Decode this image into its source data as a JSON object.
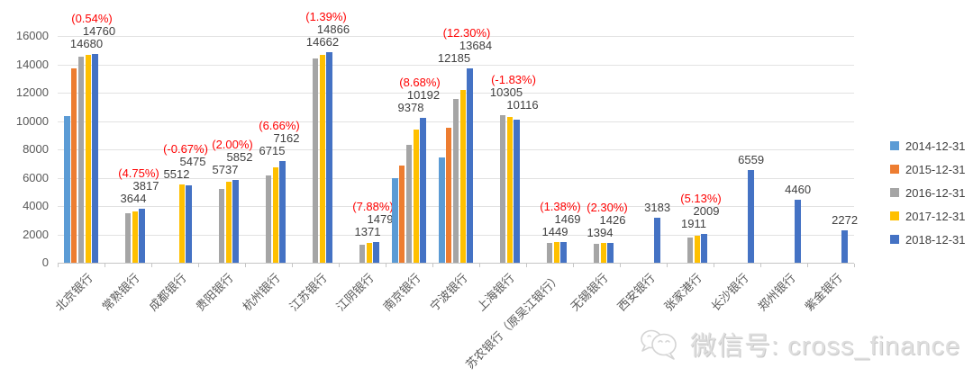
{
  "chart_data": {
    "type": "bar",
    "title": "",
    "xlabel": "",
    "ylabel": "",
    "ylim": [
      0,
      16000
    ],
    "yticks": [
      0,
      2000,
      4000,
      6000,
      8000,
      10000,
      12000,
      14000,
      16000
    ],
    "grid": "horizontal",
    "legend_position": "right",
    "series": [
      {
        "name": "2014-12-31",
        "color": "#5B9BD5"
      },
      {
        "name": "2015-12-31",
        "color": "#ED7D31"
      },
      {
        "name": "2016-12-31",
        "color": "#A5A5A5"
      },
      {
        "name": "2017-12-31",
        "color": "#FFC000"
      },
      {
        "name": "2018-12-31",
        "color": "#4472C4"
      }
    ],
    "categories": [
      "北京银行",
      "常熟银行",
      "成都银行",
      "贵阳银行",
      "杭州银行",
      "江苏银行",
      "江阴银行",
      "南京银行",
      "宁波银行",
      "上海银行",
      "苏农银行（原吴江银行）",
      "无锡银行",
      "西安银行",
      "张家港行",
      "长沙银行",
      "郑州银行",
      "紫金银行"
    ],
    "values": [
      [
        10350,
        13720,
        14520,
        14680,
        14760
      ],
      [
        null,
        null,
        3500,
        3644,
        3817
      ],
      [
        null,
        null,
        null,
        5512,
        5475
      ],
      [
        null,
        null,
        5200,
        5737,
        5852
      ],
      [
        null,
        null,
        6180,
        6715,
        7162
      ],
      [
        null,
        null,
        14420,
        14662,
        14866
      ],
      [
        null,
        null,
        1250,
        1371,
        1479
      ],
      [
        5950,
        6850,
        8300,
        9378,
        10192
      ],
      [
        7450,
        9500,
        11560,
        12185,
        13684
      ],
      [
        null,
        null,
        10430,
        10305,
        10116
      ],
      [
        null,
        null,
        1420,
        1449,
        1469
      ],
      [
        null,
        null,
        1350,
        1394,
        1426
      ],
      [
        null,
        null,
        null,
        null,
        3183
      ],
      [
        null,
        null,
        1750,
        1911,
        2009
      ],
      [
        null,
        null,
        null,
        null,
        6559
      ],
      [
        null,
        null,
        null,
        null,
        4460
      ],
      [
        null,
        null,
        null,
        null,
        2272
      ]
    ],
    "annotations": [
      {
        "pct": "(0.54%)",
        "lines": [
          {
            "text": "14760",
            "dx": 8
          },
          {
            "text": "14680",
            "dx": -6
          }
        ]
      },
      {
        "pct": "(4.75%)",
        "lines": [
          {
            "text": "3817",
            "dx": 8
          },
          {
            "text": "3644",
            "dx": -6
          }
        ]
      },
      {
        "pct": "(-0.67%)",
        "lines": [
          {
            "text": "5475",
            "dx": 8
          },
          {
            "text": "5512",
            "dx": -10
          }
        ]
      },
      {
        "pct": "(2.00%)",
        "lines": [
          {
            "text": "5852",
            "dx": 8
          },
          {
            "text": "5737",
            "dx": -8
          }
        ]
      },
      {
        "pct": "(6.66%)",
        "lines": [
          {
            "text": "7162",
            "dx": 8
          },
          {
            "text": "6715",
            "dx": -8
          }
        ]
      },
      {
        "pct": "(1.39%)",
        "lines": [
          {
            "text": "14866",
            "dx": 8
          },
          {
            "text": "14662",
            "dx": -4
          }
        ]
      },
      {
        "pct": "(7.88%)",
        "lines": [
          {
            "text": "1479",
            "dx": 8
          },
          {
            "text": "1371",
            "dx": -6
          }
        ]
      },
      {
        "pct": "(8.68%)",
        "lines": [
          {
            "text": "10192",
            "dx": 4
          },
          {
            "text": "9378",
            "dx": -10
          }
        ]
      },
      {
        "pct": "(12.30%)",
        "lines": [
          {
            "text": "13684",
            "dx": 10
          },
          {
            "text": "12185",
            "dx": -14
          }
        ]
      },
      {
        "pct": "(-1.83%)",
        "lines": [
          {
            "text": "10305",
            "dx": -8
          },
          {
            "text": "10116",
            "dx": 10
          }
        ]
      },
      {
        "pct": "(1.38%)",
        "lines": [
          {
            "text": "1469",
            "dx": 8
          },
          {
            "text": "1449",
            "dx": -6
          }
        ]
      },
      {
        "pct": "(2.30%)",
        "lines": [
          {
            "text": "1426",
            "dx": 6
          },
          {
            "text": "1394",
            "dx": -8
          }
        ]
      },
      {
        "pct": null,
        "lines": [
          {
            "text": "3183",
            "dx": 0
          }
        ]
      },
      {
        "pct": "(5.13%)",
        "lines": [
          {
            "text": "2009",
            "dx": 6
          },
          {
            "text": "1911",
            "dx": -8
          }
        ]
      },
      {
        "pct": null,
        "lines": [
          {
            "text": "6559",
            "dx": 0
          }
        ]
      },
      {
        "pct": null,
        "lines": [
          {
            "text": "4460",
            "dx": 0
          }
        ]
      },
      {
        "pct": null,
        "lines": [
          {
            "text": "2272",
            "dx": 0
          }
        ]
      }
    ],
    "colors": {
      "annotation_pct": "#FF0000",
      "annotation_value": "#404040",
      "axis_text": "#595959",
      "gridline": "#E2E2E2"
    }
  },
  "watermark": {
    "icon": "wechat-icon",
    "text": "微信号: cross_finance"
  }
}
